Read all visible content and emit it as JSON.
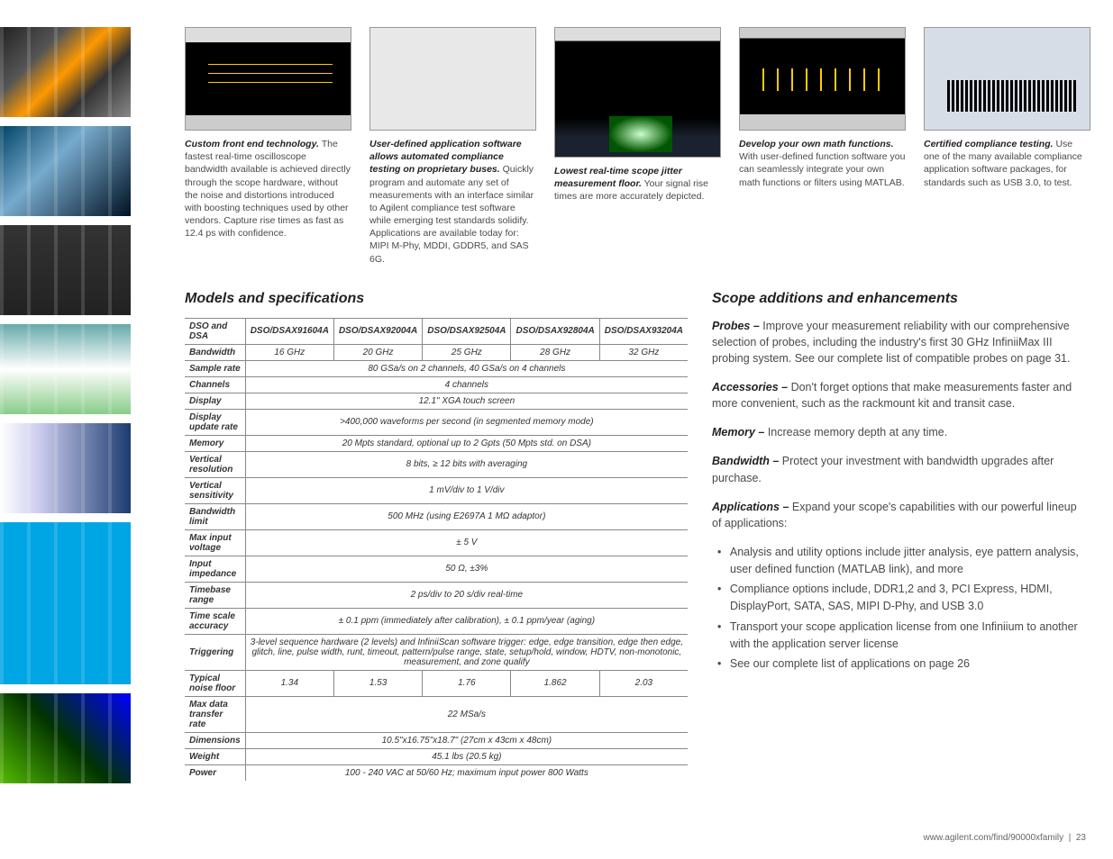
{
  "features": [
    {
      "title": "Custom front end technology.",
      "body": "The fastest real-time oscilloscope bandwidth available is achieved directly through the scope hardware, without the noise and distortions introduced with boosting techniques used by other vendors. Capture rise times as fast as 12.4 ps with confidence."
    },
    {
      "title": "User-defined application software allows automated compliance testing on proprietary buses.",
      "body": "Quickly program and automate any set of measurements with an interface similar to Agilent compliance test software while emerging test standards solidify. Applications are available today for: MIPI M-Phy, MDDI, GDDR5, and SAS 6G."
    },
    {
      "title": "Lowest real-time scope jitter measurement floor.",
      "body": "Your signal rise times are more accurately depicted."
    },
    {
      "title": "Develop your own math functions.",
      "body": "With user-defined function software you can seamlessly integrate your own math functions or filters using MATLAB."
    },
    {
      "title": "Certified compliance testing.",
      "body": "Use one of the many available compliance application software packages, for standards such as USB 3.0, to test."
    }
  ],
  "spec_heading": "Models and specifications",
  "spec_models_header": "DSO and DSA",
  "spec_models": [
    "DSO/DSAX91604A",
    "DSO/DSAX92004A",
    "DSO/DSAX92504A",
    "DSO/DSAX92804A",
    "DSO/DSAX93204A"
  ],
  "spec_rows": [
    {
      "label": "Bandwidth",
      "cells": [
        "16 GHz",
        "20 GHz",
        "25 GHz",
        "28 GHz",
        "32 GHz"
      ]
    },
    {
      "label": "Sample rate",
      "span": "80 GSa/s on 2 channels, 40 GSa/s on 4 channels"
    },
    {
      "label": "Channels",
      "span": "4 channels"
    },
    {
      "label": "Display",
      "span": "12.1\" XGA touch screen"
    },
    {
      "label": "Display update rate",
      "span": ">400,000 waveforms per second (in segmented memory mode)"
    },
    {
      "label": "Memory",
      "span": "20 Mpts standard, optional up to 2 Gpts (50 Mpts std. on DSA)"
    },
    {
      "label": "Vertical resolution",
      "span": "8 bits, ≥ 12 bits with averaging"
    },
    {
      "label": "Vertical sensitivity",
      "span": "1 mV/div to 1 V/div"
    },
    {
      "label": "Bandwidth limit",
      "span": "500 MHz (using E2697A 1 MΩ adaptor)"
    },
    {
      "label": "Max input voltage",
      "span": "± 5 V"
    },
    {
      "label": "Input impedance",
      "span": "50 Ω, ±3%"
    },
    {
      "label": "Timebase range",
      "span": "2 ps/div to 20 s/div real-time"
    },
    {
      "label": "Time scale accuracy",
      "span": "± 0.1 ppm (immediately after calibration), ± 0.1 ppm/year (aging)"
    },
    {
      "label": "Triggering",
      "span": "3-level sequence hardware (2 levels) and InfiniiScan software trigger: edge, edge transition, edge then edge, glitch, line, pulse width, runt, timeout, pattern/pulse range, state, setup/hold, window, HDTV, non-monotonic, measurement, and zone qualify"
    },
    {
      "label": "Typical noise floor",
      "cells": [
        "1.34",
        "1.53",
        "1.76",
        "1.862",
        "2.03"
      ]
    },
    {
      "label": "Max data transfer rate",
      "span": "22 MSa/s"
    },
    {
      "label": "Dimensions",
      "span": "10.5\"x16.75\"x18.7\" (27cm x 43cm x 48cm)"
    },
    {
      "label": "Weight",
      "span": "45.1 lbs (20.5 kg)"
    },
    {
      "label": "Power",
      "span": "100 - 240 VAC at 50/60 Hz; maximum input power 800 Watts",
      "nobottom": true
    }
  ],
  "enh_heading": "Scope additions and enhancements",
  "enh_items": [
    {
      "b": "Probes –",
      "t": "Improve your measurement reliability with our comprehensive selection of probes, including the industry's first 30 GHz InfiniiMax III probing system. See our complete list of compatible probes on page 31."
    },
    {
      "b": "Accessories –",
      "t": "Don't forget options that make measurements faster and more convenient, such as the rackmount kit and transit case."
    },
    {
      "b": "Memory –",
      "t": "Increase memory depth at any time."
    },
    {
      "b": "Bandwidth –",
      "t": "Protect your investment with bandwidth upgrades after purchase."
    },
    {
      "b": "Applications –",
      "t": "Expand your scope's capabilities with our powerful lineup of applications:"
    }
  ],
  "enh_bullets": [
    "Analysis and utility options include jitter analysis, eye pattern analysis, user defined function (MATLAB link), and more",
    "Compliance options include, DDR1,2 and 3, PCI Express, HDMI, DisplayPort, SATA, SAS, MIPI D-Phy, and USB 3.0",
    "Transport your scope application license from one Infiniium to another with the application server license",
    "See our complete list of applications on page 26"
  ],
  "footer_url": "www.agilent.com/find/90000xfamily",
  "footer_page": "23"
}
